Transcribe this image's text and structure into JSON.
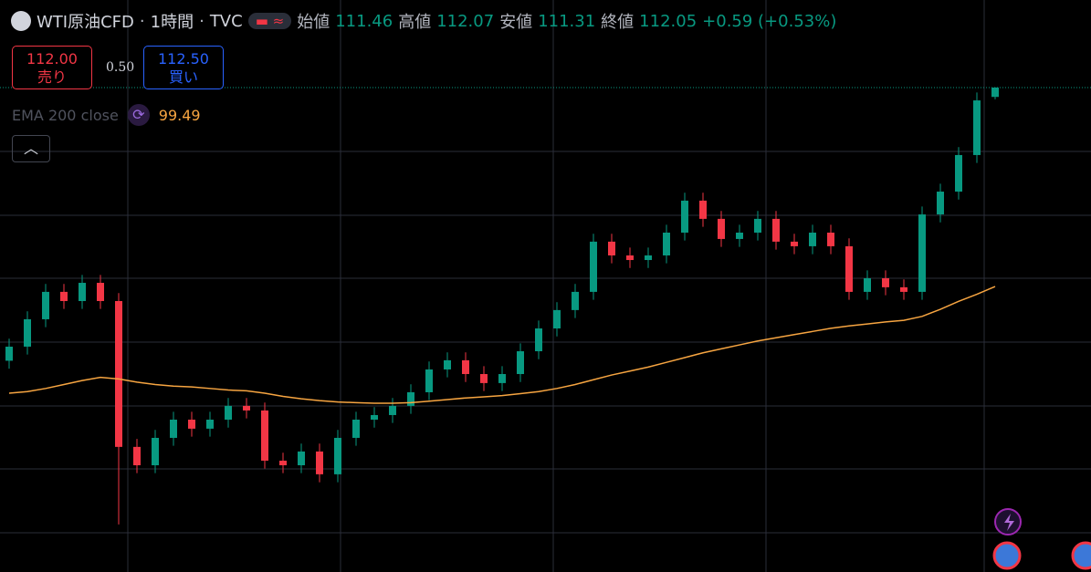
{
  "chart_data": {
    "type": "candlestick",
    "symbol": "WTI原油CFD",
    "interval": "1時間",
    "source": "TVC",
    "ohlc_labels": {
      "open": "始値",
      "high": "高値",
      "low": "安値",
      "close": "終値"
    },
    "change": "+0.59 (+0.53%)",
    "up_color": "#089981",
    "down_color": "#f23645",
    "ylim": [
      81.46,
      117.58
    ],
    "open": [
      94.8,
      95.69,
      97.42,
      99.15,
      98.57,
      99.72,
      98.57,
      89.36,
      88.2,
      89.93,
      91.08,
      90.51,
      91.08,
      91.95,
      91.66,
      88.49,
      88.2,
      89.07,
      87.63,
      89.93,
      91.08,
      91.37,
      91.95,
      92.81,
      94.25,
      94.83,
      93.96,
      93.39,
      93.96,
      95.4,
      96.84,
      98.0,
      99.15,
      102.32,
      101.45,
      101.16,
      101.45,
      102.89,
      104.91,
      103.76,
      102.49,
      102.89,
      103.76,
      102.32,
      102.03,
      102.89,
      102.03,
      99.15,
      100.01,
      99.44,
      99.15,
      104.04,
      105.48,
      107.79,
      111.46
    ],
    "high": [
      96.19,
      97.92,
      99.65,
      99.65,
      100.22,
      100.22,
      99.07,
      89.86,
      90.43,
      91.58,
      91.58,
      91.58,
      92.45,
      92.45,
      92.16,
      88.99,
      89.57,
      89.57,
      90.43,
      91.58,
      91.87,
      92.45,
      93.31,
      94.75,
      95.33,
      95.33,
      94.46,
      94.46,
      95.9,
      97.34,
      98.5,
      99.65,
      102.82,
      102.82,
      101.95,
      101.95,
      103.39,
      105.41,
      105.41,
      104.26,
      103.39,
      104.26,
      104.26,
      102.82,
      103.39,
      103.39,
      102.53,
      100.51,
      100.51,
      99.94,
      104.54,
      105.98,
      108.29,
      111.74,
      112.07
    ],
    "low": [
      94.3,
      95.19,
      96.92,
      98.07,
      98.07,
      98.07,
      84.46,
      87.7,
      87.7,
      89.43,
      90.01,
      90.01,
      90.58,
      91.16,
      87.99,
      87.7,
      87.7,
      87.13,
      87.13,
      89.43,
      90.58,
      90.87,
      91.45,
      92.31,
      93.75,
      93.46,
      92.89,
      92.89,
      93.46,
      94.9,
      96.34,
      97.5,
      98.65,
      100.95,
      100.66,
      100.66,
      100.95,
      102.39,
      103.26,
      101.99,
      101.99,
      102.39,
      101.82,
      101.53,
      101.53,
      101.53,
      98.65,
      98.65,
      98.94,
      98.65,
      98.65,
      103.54,
      104.98,
      107.29,
      111.31
    ],
    "close": [
      95.69,
      97.42,
      99.15,
      98.57,
      99.72,
      98.57,
      89.36,
      88.2,
      89.93,
      91.08,
      90.51,
      91.08,
      91.95,
      91.66,
      88.49,
      88.2,
      89.07,
      87.63,
      89.93,
      91.08,
      91.37,
      91.95,
      92.81,
      94.25,
      94.83,
      93.96,
      93.39,
      93.96,
      95.4,
      96.84,
      98.0,
      99.15,
      102.32,
      101.45,
      101.16,
      101.45,
      102.89,
      104.91,
      103.76,
      102.49,
      102.89,
      103.76,
      102.32,
      102.03,
      102.89,
      102.03,
      99.15,
      100.01,
      99.44,
      99.15,
      104.04,
      105.48,
      107.79,
      111.24,
      112.05
    ],
    "ema": {
      "name": "EMA 200 close",
      "color": "#f7a541",
      "values": [
        92.75,
        92.85,
        93.05,
        93.3,
        93.55,
        93.75,
        93.65,
        93.45,
        93.3,
        93.2,
        93.15,
        93.05,
        92.95,
        92.9,
        92.75,
        92.55,
        92.4,
        92.28,
        92.2,
        92.15,
        92.12,
        92.12,
        92.15,
        92.25,
        92.35,
        92.45,
        92.52,
        92.6,
        92.72,
        92.85,
        93.05,
        93.3,
        93.6,
        93.9,
        94.15,
        94.4,
        94.7,
        95.0,
        95.3,
        95.55,
        95.8,
        96.05,
        96.25,
        96.45,
        96.65,
        96.85,
        97.0,
        97.12,
        97.25,
        97.35,
        97.6,
        98.05,
        98.55,
        99.0,
        99.49
      ]
    },
    "trade": {
      "sell_price": "112.00",
      "sell_label": "売り",
      "spread": "0.50",
      "buy_price": "112.50",
      "buy_label": "買い"
    }
  }
}
